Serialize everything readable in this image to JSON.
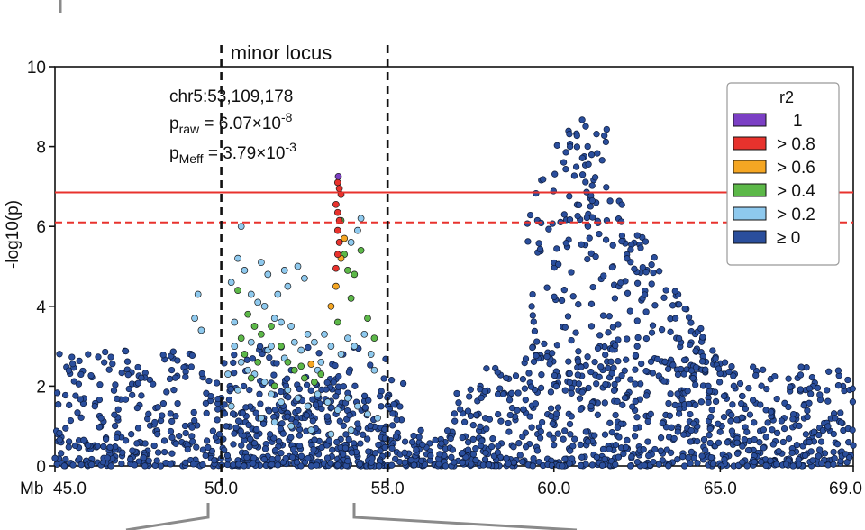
{
  "chart_data": {
    "type": "scatter",
    "title": "",
    "xlabel": "Mb",
    "ylabel": "-log10(p)",
    "xlim": [
      45.0,
      69.0
    ],
    "ylim": [
      0,
      10
    ],
    "x_ticks": [
      {
        "value": 45.0,
        "label": "45.0"
      },
      {
        "value": 50.0,
        "label": "50.0"
      },
      {
        "value": 55.0,
        "label": "55.0"
      },
      {
        "value": 60.0,
        "label": "60.0"
      },
      {
        "value": 65.0,
        "label": "65.0"
      },
      {
        "value": 69.0,
        "label": "69.0"
      }
    ],
    "y_ticks": [
      {
        "value": 0,
        "label": "0"
      },
      {
        "value": 2,
        "label": "2"
      },
      {
        "value": 4,
        "label": "4"
      },
      {
        "value": 6,
        "label": "6"
      },
      {
        "value": 8,
        "label": "8"
      },
      {
        "value": 10,
        "label": "10"
      }
    ],
    "grid": false,
    "thresholds": [
      {
        "y": 6.85,
        "style": "solid",
        "color": "#e8322d"
      },
      {
        "y": 6.1,
        "style": "dashed",
        "color": "#e8322d"
      }
    ],
    "locus_region": {
      "x_start": 50.0,
      "x_end": 55.0,
      "label": "minor locus"
    },
    "annotation": {
      "position": "chr5:53,109,178",
      "praw": {
        "prefix": "p",
        "sub": "raw",
        "mid": " = 6.07×10",
        "exp": "-8"
      },
      "pmeff": {
        "prefix": "p",
        "sub": "Meff",
        "mid": " = 3.79×10",
        "exp": "-3"
      }
    },
    "legend": {
      "title": "r2",
      "placement": "top-right",
      "entries": [
        {
          "label": "1",
          "color": "#7b3fc4"
        },
        {
          "label": "> 0.8",
          "color": "#e8322d"
        },
        {
          "label": "> 0.6",
          "color": "#f5a623"
        },
        {
          "label": "> 0.4",
          "color": "#5cb848"
        },
        {
          "label": "> 0.2",
          "color": "#8ec9ee"
        },
        {
          "label": "≥ 0",
          "color": "#2a4e9c"
        }
      ]
    },
    "series": [
      {
        "name": "> 0.8",
        "color": "#e8322d",
        "points": [
          [
            53.5,
            7.1
          ],
          [
            53.55,
            6.95
          ],
          [
            53.6,
            6.8
          ],
          [
            53.45,
            6.55
          ],
          [
            53.5,
            6.35
          ],
          [
            53.55,
            6.15
          ],
          [
            53.5,
            5.9
          ],
          [
            53.55,
            5.6
          ],
          [
            53.5,
            5.3
          ],
          [
            53.45,
            4.95
          ]
        ]
      },
      {
        "name": "1",
        "color": "#7b3fc4",
        "points": [
          [
            53.52,
            7.25
          ]
        ]
      },
      {
        "name": "> 0.6",
        "color": "#f5a623",
        "points": [
          [
            53.6,
            5.2
          ],
          [
            53.3,
            4.0
          ],
          [
            53.45,
            4.5
          ],
          [
            52.7,
            2.55
          ],
          [
            53.7,
            5.7
          ]
        ]
      },
      {
        "name": "> 0.4",
        "color": "#5cb848",
        "points": [
          [
            53.6,
            6.15
          ],
          [
            53.7,
            5.3
          ],
          [
            53.8,
            4.9
          ],
          [
            53.9,
            4.2
          ],
          [
            54.4,
            3.7
          ],
          [
            54.6,
            3.2
          ],
          [
            54.2,
            5.4
          ],
          [
            54.0,
            4.8
          ],
          [
            53.5,
            3.6
          ],
          [
            50.5,
            4.4
          ],
          [
            50.8,
            3.8
          ],
          [
            51.0,
            3.5
          ],
          [
            50.6,
            3.2
          ],
          [
            51.2,
            3.3
          ],
          [
            51.5,
            3.5
          ],
          [
            51.8,
            3.0
          ],
          [
            52.0,
            2.6
          ],
          [
            52.2,
            2.4
          ],
          [
            50.7,
            2.8
          ],
          [
            51.1,
            2.6
          ],
          [
            50.9,
            2.2
          ],
          [
            52.5,
            2.2
          ],
          [
            52.8,
            2.1
          ],
          [
            53.0,
            2.3
          ],
          [
            52.4,
            2.5
          ],
          [
            51.6,
            2.0
          ]
        ]
      },
      {
        "name": "> 0.2",
        "color": "#8ec9ee",
        "points": [
          [
            50.6,
            6.0
          ],
          [
            49.3,
            4.3
          ],
          [
            49.2,
            3.7
          ],
          [
            49.4,
            3.4
          ],
          [
            50.5,
            5.2
          ],
          [
            50.7,
            4.9
          ],
          [
            51.2,
            5.1
          ],
          [
            51.4,
            4.8
          ],
          [
            51.9,
            4.9
          ],
          [
            52.3,
            5.0
          ],
          [
            52.5,
            4.7
          ],
          [
            50.3,
            4.6
          ],
          [
            50.9,
            4.3
          ],
          [
            51.1,
            4.1
          ],
          [
            51.3,
            4.0
          ],
          [
            51.6,
            3.7
          ],
          [
            51.8,
            3.6
          ],
          [
            52.1,
            3.5
          ],
          [
            52.6,
            3.3
          ],
          [
            52.8,
            3.1
          ],
          [
            53.1,
            3.3
          ],
          [
            53.3,
            3.0
          ],
          [
            53.6,
            2.8
          ],
          [
            53.8,
            3.2
          ],
          [
            54.0,
            3.0
          ],
          [
            54.3,
            3.3
          ],
          [
            54.5,
            2.8
          ],
          [
            54.2,
            6.2
          ],
          [
            54.1,
            5.9
          ],
          [
            53.9,
            5.6
          ],
          [
            50.4,
            3.0
          ],
          [
            50.6,
            2.6
          ],
          [
            50.8,
            2.4
          ],
          [
            51.0,
            2.3
          ],
          [
            51.3,
            2.1
          ],
          [
            51.5,
            1.8
          ],
          [
            51.8,
            1.6
          ],
          [
            52.0,
            1.9
          ],
          [
            52.3,
            1.7
          ],
          [
            52.6,
            1.5
          ],
          [
            52.9,
            1.8
          ],
          [
            53.2,
            1.6
          ],
          [
            53.5,
            1.4
          ],
          [
            53.8,
            1.7
          ],
          [
            54.1,
            1.5
          ],
          [
            54.4,
            1.3
          ],
          [
            54.7,
            1.2
          ],
          [
            51.2,
            1.2
          ],
          [
            51.6,
            1.1
          ],
          [
            52.1,
            1.0
          ],
          [
            52.7,
            0.9
          ],
          [
            53.3,
            0.8
          ],
          [
            53.9,
            0.9
          ],
          [
            50.3,
            1.5
          ],
          [
            50.5,
            1.9
          ],
          [
            50.2,
            2.3
          ],
          [
            52.4,
            2.9
          ],
          [
            51.9,
            2.7
          ],
          [
            51.4,
            2.9
          ],
          [
            50.9,
            3.1
          ],
          [
            53.0,
            2.6
          ],
          [
            52.2,
            3.1
          ],
          [
            51.7,
            4.3
          ],
          [
            52.0,
            4.5
          ],
          [
            54.6,
            2.4
          ],
          [
            50.4,
            3.6
          ],
          [
            51.5,
            3.0
          ],
          [
            52.9,
            2.4
          ]
        ]
      }
    ]
  }
}
